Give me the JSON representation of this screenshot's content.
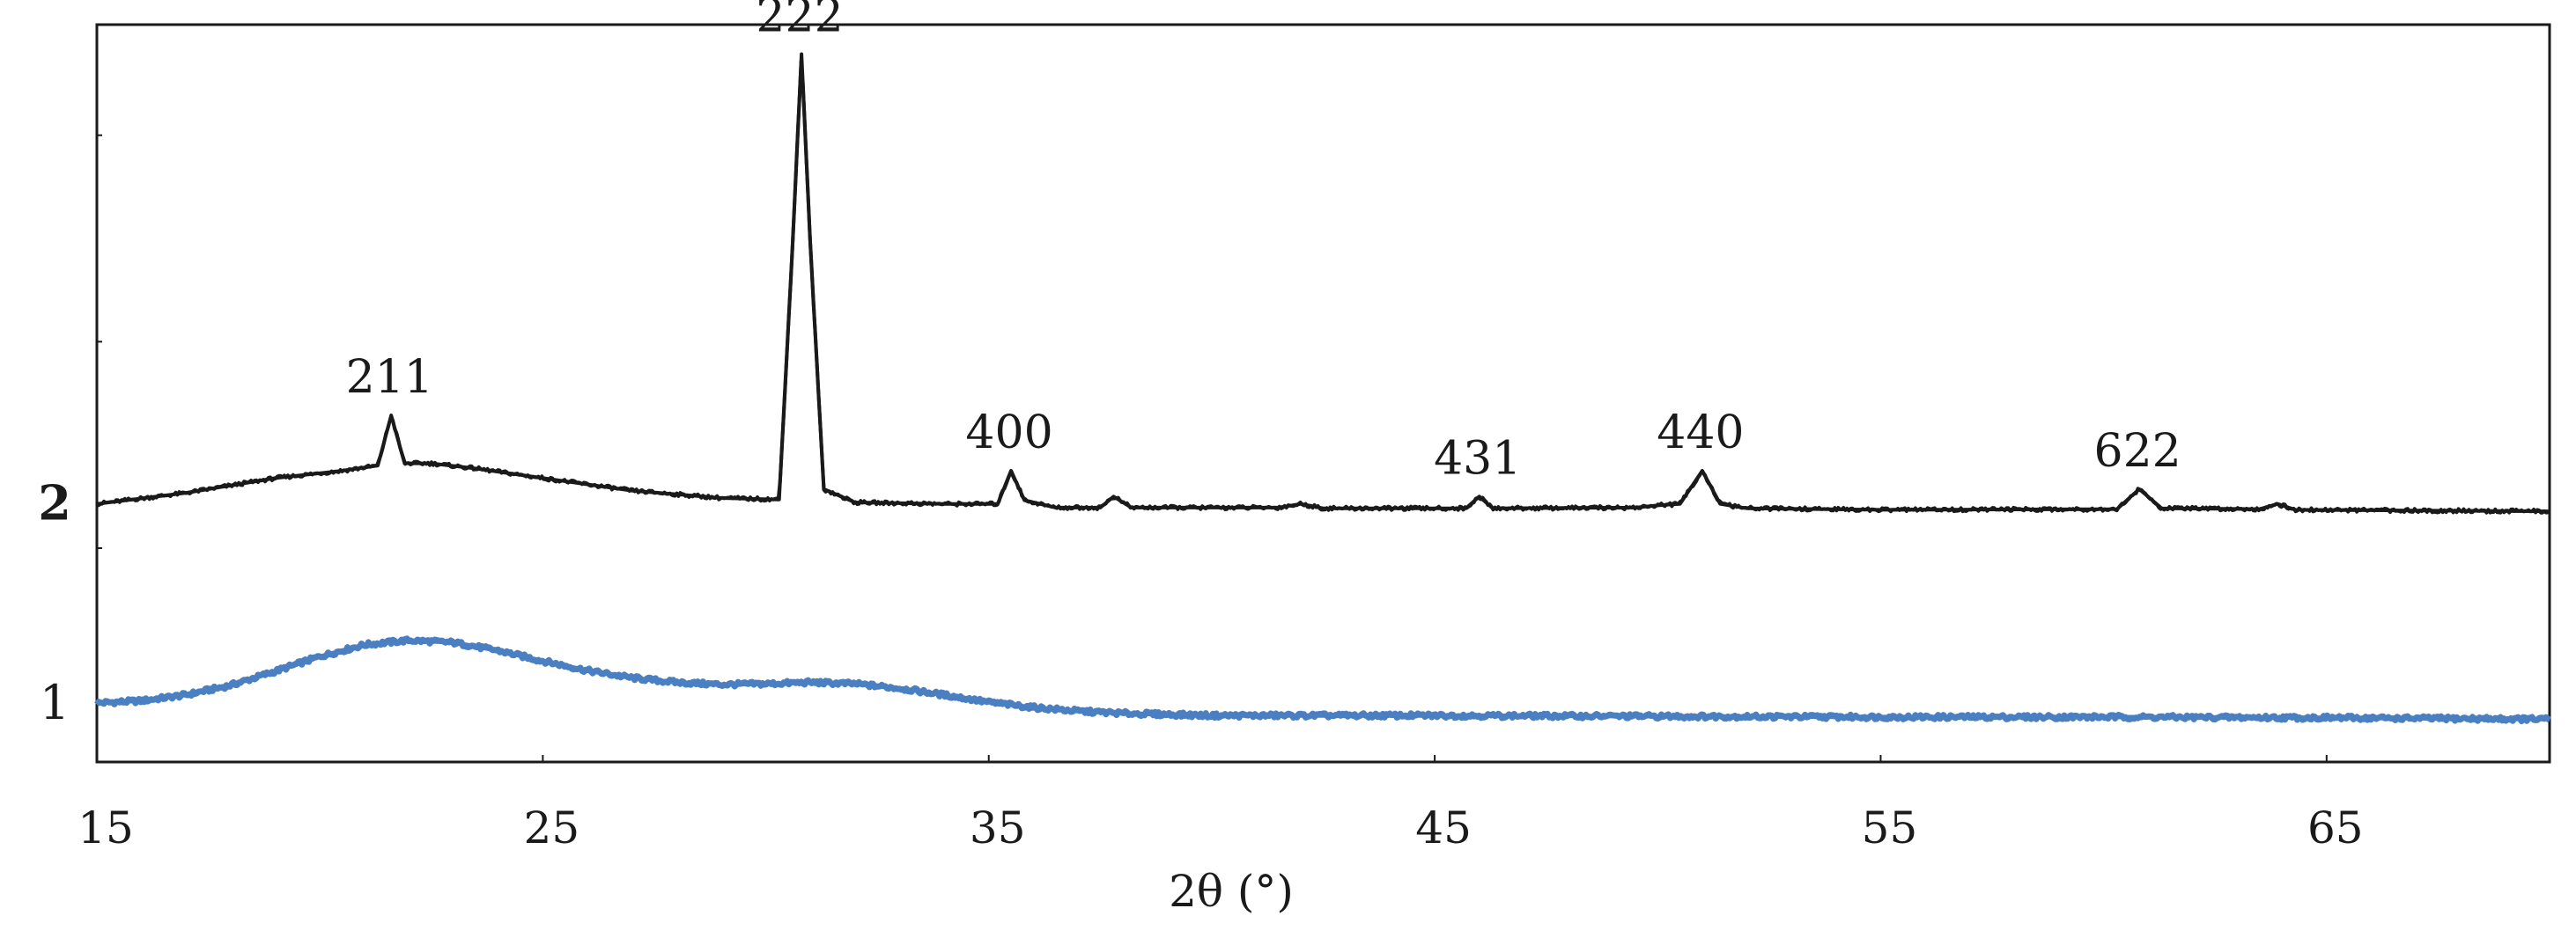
{
  "chart_data": {
    "type": "line",
    "title": "",
    "xlabel": "2θ (°)",
    "ylabel": "",
    "xlim": [
      15,
      70
    ],
    "ylim": [
      0,
      1
    ],
    "x_ticks": [
      "15",
      "25",
      "35",
      "45",
      "55",
      "65"
    ],
    "x_tick_values": [
      15,
      25,
      35,
      45,
      55,
      65
    ],
    "y_ticks": [],
    "grid": false,
    "legend": "none",
    "series": [
      {
        "label": "1",
        "color": "#4a7fc1",
        "points": [
          [
            15.0,
            0.08
          ],
          [
            16.0,
            0.083
          ],
          [
            17.0,
            0.091
          ],
          [
            18.0,
            0.104
          ],
          [
            19.0,
            0.123
          ],
          [
            20.0,
            0.143
          ],
          [
            21.0,
            0.159
          ],
          [
            22.0,
            0.165
          ],
          [
            23.0,
            0.162
          ],
          [
            24.0,
            0.151
          ],
          [
            25.0,
            0.137
          ],
          [
            26.0,
            0.124
          ],
          [
            27.0,
            0.114
          ],
          [
            28.0,
            0.108
          ],
          [
            29.0,
            0.105
          ],
          [
            30.0,
            0.106
          ],
          [
            31.0,
            0.108
          ],
          [
            32.0,
            0.106
          ],
          [
            33.0,
            0.1
          ],
          [
            34.0,
            0.091
          ],
          [
            35.0,
            0.081
          ],
          [
            36.0,
            0.074
          ],
          [
            37.0,
            0.069
          ],
          [
            38.0,
            0.066
          ],
          [
            40.0,
            0.063
          ],
          [
            45.0,
            0.063
          ],
          [
            50.0,
            0.062
          ],
          [
            55.0,
            0.061
          ],
          [
            60.0,
            0.061
          ],
          [
            65.0,
            0.06
          ],
          [
            70.0,
            0.058
          ]
        ]
      },
      {
        "label": "2",
        "color": "#1a1a1a",
        "points": [
          [
            15.0,
            0.35
          ],
          [
            17.0,
            0.365
          ],
          [
            19.0,
            0.385
          ],
          [
            20.5,
            0.395
          ],
          [
            21.3,
            0.402
          ],
          [
            21.6,
            0.47
          ],
          [
            21.9,
            0.405
          ],
          [
            22.5,
            0.405
          ],
          [
            23.5,
            0.398
          ],
          [
            25.0,
            0.385
          ],
          [
            27.0,
            0.368
          ],
          [
            29.0,
            0.358
          ],
          [
            30.3,
            0.356
          ],
          [
            30.6,
            0.7
          ],
          [
            30.8,
            0.96
          ],
          [
            31.0,
            0.7
          ],
          [
            31.3,
            0.37
          ],
          [
            32.0,
            0.352
          ],
          [
            34.0,
            0.35
          ],
          [
            35.2,
            0.35
          ],
          [
            35.5,
            0.395
          ],
          [
            35.8,
            0.355
          ],
          [
            36.5,
            0.345
          ],
          [
            37.5,
            0.345
          ],
          [
            37.8,
            0.36
          ],
          [
            38.2,
            0.345
          ],
          [
            41.5,
            0.345
          ],
          [
            42.0,
            0.35
          ],
          [
            42.5,
            0.344
          ],
          [
            45.7,
            0.344
          ],
          [
            46.0,
            0.36
          ],
          [
            46.3,
            0.344
          ],
          [
            49.5,
            0.345
          ],
          [
            50.0,
            0.348
          ],
          [
            50.5,
            0.35
          ],
          [
            51.0,
            0.395
          ],
          [
            51.4,
            0.35
          ],
          [
            52.0,
            0.344
          ],
          [
            55.0,
            0.342
          ],
          [
            60.3,
            0.343
          ],
          [
            60.8,
            0.37
          ],
          [
            61.3,
            0.344
          ],
          [
            63.5,
            0.343
          ],
          [
            63.9,
            0.35
          ],
          [
            64.3,
            0.342
          ],
          [
            67.0,
            0.341
          ],
          [
            70.0,
            0.34
          ]
        ]
      }
    ],
    "annotations": [
      {
        "text": "211",
        "x": 21.6,
        "y": 0.47
      },
      {
        "text": "222",
        "x": 30.8,
        "y": 0.96
      },
      {
        "text": "400",
        "x": 35.5,
        "y": 0.395
      },
      {
        "text": "431",
        "x": 46.0,
        "y": 0.36
      },
      {
        "text": "440",
        "x": 51.0,
        "y": 0.395
      },
      {
        "text": "622",
        "x": 60.8,
        "y": 0.37
      }
    ]
  }
}
